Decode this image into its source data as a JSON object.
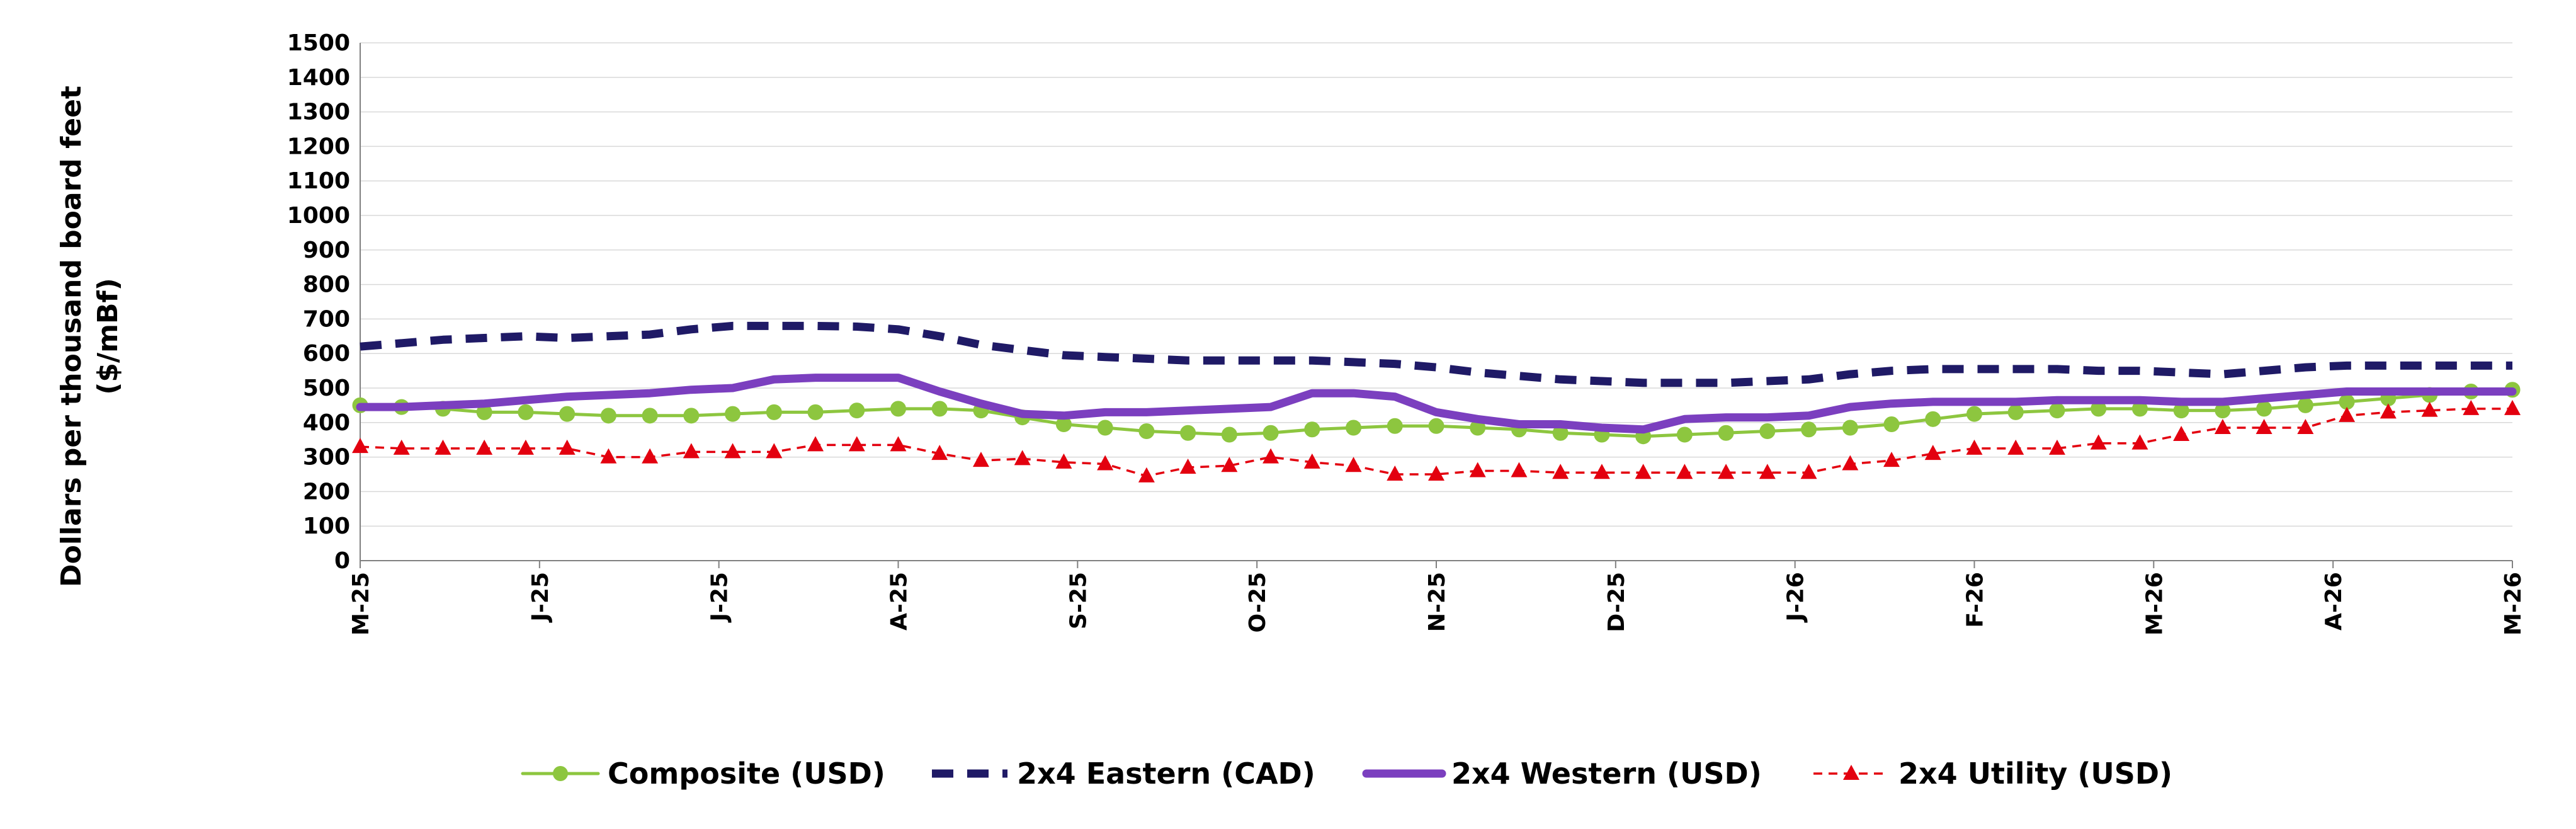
{
  "chart_data": {
    "type": "line",
    "title": "",
    "xlabel": "",
    "ylabel": "Dollars per thousand board feet ($/mBf)",
    "ylim": [
      0,
      1500
    ],
    "yticks": [
      0,
      100,
      200,
      300,
      400,
      500,
      600,
      700,
      800,
      900,
      1000,
      1100,
      1200,
      1300,
      1400,
      1500
    ],
    "grid": true,
    "legend_position": "bottom",
    "x_tick_labels": [
      "M-25",
      "J-25",
      "J-25",
      "A-25",
      "S-25",
      "O-25",
      "N-25",
      "D-25",
      "J-26",
      "F-26",
      "M-26",
      "A-26",
      "M-26"
    ],
    "n_points": 53,
    "series": [
      {
        "name": "Composite (USD)",
        "color": "#8DC63F",
        "line_style": "solid",
        "marker": "circle",
        "values": [
          450,
          445,
          440,
          430,
          430,
          425,
          420,
          420,
          420,
          425,
          430,
          430,
          435,
          440,
          440,
          435,
          415,
          395,
          385,
          375,
          370,
          365,
          370,
          380,
          385,
          390,
          390,
          385,
          380,
          370,
          365,
          360,
          365,
          370,
          375,
          380,
          385,
          395,
          410,
          425,
          430,
          435,
          440,
          440,
          435,
          435,
          440,
          450,
          460,
          470,
          480,
          490,
          495
        ]
      },
      {
        "name": "2x4 Eastern (CAD)",
        "color": "#1F1A66",
        "line_style": "dashed",
        "marker": "none",
        "values": [
          620,
          630,
          640,
          645,
          650,
          645,
          650,
          655,
          670,
          680,
          680,
          680,
          678,
          670,
          650,
          625,
          610,
          595,
          590,
          585,
          580,
          580,
          580,
          580,
          575,
          570,
          560,
          545,
          535,
          525,
          520,
          515,
          515,
          515,
          520,
          525,
          540,
          550,
          555,
          555,
          555,
          555,
          550,
          550,
          545,
          540,
          550,
          560,
          565,
          565,
          565,
          565,
          565
        ]
      },
      {
        "name": "2x4 Western (USD)",
        "color": "#7B3FBF",
        "line_style": "solid",
        "marker": "none",
        "values": [
          445,
          445,
          450,
          455,
          465,
          475,
          480,
          485,
          495,
          500,
          525,
          530,
          530,
          530,
          490,
          455,
          425,
          420,
          430,
          430,
          435,
          440,
          445,
          485,
          485,
          475,
          430,
          410,
          395,
          395,
          385,
          380,
          410,
          415,
          415,
          420,
          445,
          455,
          460,
          460,
          460,
          465,
          465,
          465,
          460,
          460,
          470,
          480,
          490,
          490,
          490,
          490,
          490
        ]
      },
      {
        "name": "2x4 Utility (USD)",
        "color": "#E3000F",
        "line_style": "dashed",
        "marker": "triangle",
        "values": [
          330,
          325,
          325,
          325,
          325,
          325,
          300,
          300,
          315,
          315,
          315,
          335,
          335,
          335,
          310,
          290,
          295,
          285,
          280,
          245,
          270,
          275,
          300,
          285,
          275,
          250,
          250,
          260,
          260,
          255,
          255,
          255,
          255,
          255,
          255,
          255,
          280,
          290,
          310,
          325,
          325,
          325,
          340,
          340,
          365,
          385,
          385,
          385,
          420,
          430,
          435,
          440,
          440
        ]
      }
    ]
  }
}
